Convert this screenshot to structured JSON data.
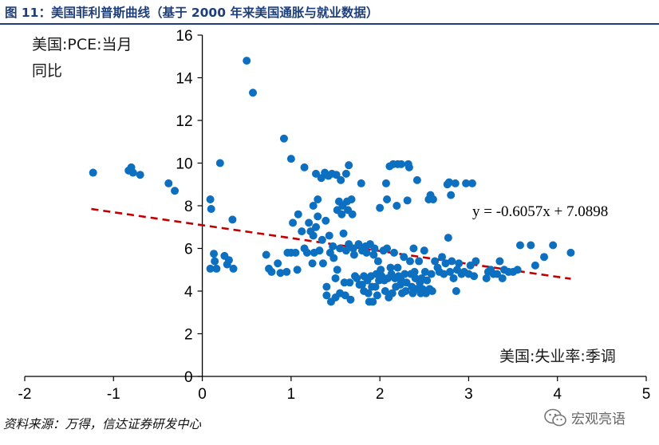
{
  "header": {
    "title": "图 11：美国菲利普斯曲线（基于 2000 年来美国通胀与就业数据）"
  },
  "footer": {
    "source": "资料来源：万得，信达证券研发中心",
    "watermark": "宏观亮语",
    "watermark_icon": "wechat-icon"
  },
  "chart_data": {
    "type": "scatter",
    "title": "",
    "ylabel": "美国:PCE:当月同比",
    "xlabel": "美国:失业率:季调",
    "xlim": [
      -2,
      5
    ],
    "ylim": [
      0,
      16
    ],
    "x_ticks": [
      "-2",
      "-1",
      "0",
      "1",
      "2",
      "3",
      "4",
      "5"
    ],
    "y_ticks": [
      "0",
      "2",
      "4",
      "6",
      "8",
      "10",
      "12",
      "14",
      "16"
    ],
    "grid": false,
    "point_color": "#0c6fbf",
    "trendline": {
      "slope": -0.6057,
      "intercept": 7.0898,
      "x_range": [
        -1.25,
        4.15
      ],
      "color": "#c00000",
      "style": "dashed",
      "equation": "y = -0.6057x + 7.0898"
    },
    "points": [
      [
        -1.23,
        9.55
      ],
      [
        -0.83,
        9.65
      ],
      [
        -0.8,
        9.8
      ],
      [
        -0.78,
        9.55
      ],
      [
        -0.7,
        9.45
      ],
      [
        -0.38,
        9.05
      ],
      [
        -0.31,
        8.7
      ],
      [
        0.09,
        8.3
      ],
      [
        0.1,
        7.85
      ],
      [
        0.09,
        5.05
      ],
      [
        0.13,
        5.75
      ],
      [
        0.14,
        5.4
      ],
      [
        0.16,
        5.05
      ],
      [
        0.2,
        10.0
      ],
      [
        0.25,
        5.65
      ],
      [
        0.28,
        5.25
      ],
      [
        0.3,
        5.45
      ],
      [
        0.35,
        5.05
      ],
      [
        0.34,
        7.35
      ],
      [
        0.5,
        14.8
      ],
      [
        0.57,
        13.3
      ],
      [
        0.72,
        5.7
      ],
      [
        0.75,
        5.05
      ],
      [
        0.78,
        4.9
      ],
      [
        0.85,
        5.3
      ],
      [
        0.88,
        4.85
      ],
      [
        0.92,
        11.15
      ],
      [
        0.95,
        4.9
      ],
      [
        0.96,
        5.8
      ],
      [
        1.0,
        10.2
      ],
      [
        1.0,
        5.8
      ],
      [
        1.02,
        7.2
      ],
      [
        1.05,
        5.8
      ],
      [
        1.07,
        5.0
      ],
      [
        1.08,
        7.6
      ],
      [
        1.12,
        6.8
      ],
      [
        1.15,
        9.8
      ],
      [
        1.15,
        6.0
      ],
      [
        1.18,
        5.8
      ],
      [
        1.2,
        7.2
      ],
      [
        1.22,
        6.8
      ],
      [
        1.24,
        5.3
      ],
      [
        1.25,
        8.0
      ],
      [
        1.25,
        6.6
      ],
      [
        1.26,
        5.8
      ],
      [
        1.28,
        9.5
      ],
      [
        1.28,
        7.0
      ],
      [
        1.3,
        8.3
      ],
      [
        1.3,
        7.5
      ],
      [
        1.32,
        5.9
      ],
      [
        1.34,
        9.3
      ],
      [
        1.35,
        6.4
      ],
      [
        1.36,
        5.3
      ],
      [
        1.38,
        9.55
      ],
      [
        1.39,
        7.3
      ],
      [
        1.4,
        4.2
      ],
      [
        1.4,
        3.8
      ],
      [
        1.42,
        9.4
      ],
      [
        1.43,
        6.6
      ],
      [
        1.44,
        5.8
      ],
      [
        1.45,
        3.5
      ],
      [
        1.46,
        9.5
      ],
      [
        1.47,
        6.1
      ],
      [
        1.48,
        5.55
      ],
      [
        1.5,
        4.6
      ],
      [
        1.5,
        3.7
      ],
      [
        1.51,
        9.45
      ],
      [
        1.52,
        7.8
      ],
      [
        1.52,
        5.0
      ],
      [
        1.54,
        8.2
      ],
      [
        1.55,
        6.0
      ],
      [
        1.55,
        3.9
      ],
      [
        1.56,
        9.2
      ],
      [
        1.57,
        7.6
      ],
      [
        1.58,
        8.0
      ],
      [
        1.59,
        6.7
      ],
      [
        1.6,
        4.4
      ],
      [
        1.61,
        3.8
      ],
      [
        1.62,
        9.5
      ],
      [
        1.62,
        5.9
      ],
      [
        1.63,
        8.2
      ],
      [
        1.64,
        7.8
      ],
      [
        1.65,
        9.9
      ],
      [
        1.65,
        6.2
      ],
      [
        1.66,
        4.4
      ],
      [
        1.67,
        3.6
      ],
      [
        1.68,
        8.3
      ],
      [
        1.69,
        7.6
      ],
      [
        1.7,
        6.0
      ],
      [
        1.71,
        5.7
      ],
      [
        1.72,
        4.7
      ],
      [
        1.74,
        4.6
      ],
      [
        1.76,
        6.2
      ],
      [
        1.77,
        4.3
      ],
      [
        1.79,
        9.05
      ],
      [
        1.8,
        5.9
      ],
      [
        1.8,
        4.3
      ],
      [
        1.82,
        4.7
      ],
      [
        1.82,
        4.0
      ],
      [
        1.84,
        6.1
      ],
      [
        1.85,
        5.8
      ],
      [
        1.86,
        4.5
      ],
      [
        1.87,
        3.9
      ],
      [
        1.88,
        3.5
      ],
      [
        1.89,
        6.2
      ],
      [
        1.9,
        4.7
      ],
      [
        1.91,
        4.2
      ],
      [
        1.92,
        3.5
      ],
      [
        1.93,
        5.7
      ],
      [
        1.94,
        6.0
      ],
      [
        1.95,
        4.2
      ],
      [
        1.96,
        4.8
      ],
      [
        1.97,
        3.8
      ],
      [
        1.98,
        5.4
      ],
      [
        1.99,
        4.5
      ],
      [
        2.0,
        7.9
      ],
      [
        2.01,
        5.0
      ],
      [
        2.02,
        4.7
      ],
      [
        2.04,
        5.9
      ],
      [
        2.05,
        4.5
      ],
      [
        2.06,
        4.0
      ],
      [
        2.07,
        9.05
      ],
      [
        2.08,
        8.3
      ],
      [
        2.08,
        6.0
      ],
      [
        2.09,
        4.6
      ],
      [
        2.1,
        3.7
      ],
      [
        2.11,
        9.85
      ],
      [
        2.12,
        5.1
      ],
      [
        2.13,
        4.8
      ],
      [
        2.14,
        3.9
      ],
      [
        2.15,
        9.95
      ],
      [
        2.16,
        5.8
      ],
      [
        2.17,
        4.6
      ],
      [
        2.18,
        4.2
      ],
      [
        2.19,
        8.0
      ],
      [
        2.2,
        9.95
      ],
      [
        2.2,
        5.1
      ],
      [
        2.21,
        4.7
      ],
      [
        2.23,
        4.3
      ],
      [
        2.24,
        9.95
      ],
      [
        2.24,
        4.5
      ],
      [
        2.25,
        3.9
      ],
      [
        2.27,
        5.6
      ],
      [
        2.28,
        4.8
      ],
      [
        2.29,
        4.0
      ],
      [
        2.3,
        4.4
      ],
      [
        2.31,
        8.25
      ],
      [
        2.32,
        9.95
      ],
      [
        2.33,
        9.8
      ],
      [
        2.34,
        5.4
      ],
      [
        2.35,
        4.8
      ],
      [
        2.36,
        4.2
      ],
      [
        2.37,
        3.9
      ],
      [
        2.38,
        6.0
      ],
      [
        2.39,
        4.9
      ],
      [
        2.4,
        4.6
      ],
      [
        2.41,
        4.1
      ],
      [
        2.42,
        9.2
      ],
      [
        2.44,
        5.4
      ],
      [
        2.45,
        4.4
      ],
      [
        2.46,
        3.9
      ],
      [
        2.47,
        4.6
      ],
      [
        2.48,
        4.1
      ],
      [
        2.5,
        5.9
      ],
      [
        2.51,
        4.9
      ],
      [
        2.52,
        3.9
      ],
      [
        2.53,
        4.5
      ],
      [
        2.55,
        8.3
      ],
      [
        2.56,
        4.1
      ],
      [
        2.57,
        8.5
      ],
      [
        2.58,
        4.8
      ],
      [
        2.59,
        4.0
      ],
      [
        2.6,
        8.3
      ],
      [
        2.62,
        5.4
      ],
      [
        2.65,
        5.1
      ],
      [
        2.67,
        4.9
      ],
      [
        2.7,
        5.6
      ],
      [
        2.72,
        4.8
      ],
      [
        2.74,
        5.3
      ],
      [
        2.76,
        9.0
      ],
      [
        2.77,
        6.5
      ],
      [
        2.78,
        9.1
      ],
      [
        2.79,
        4.9
      ],
      [
        2.8,
        8.5
      ],
      [
        2.81,
        5.4
      ],
      [
        2.83,
        4.6
      ],
      [
        2.85,
        9.05
      ],
      [
        2.86,
        4.0
      ],
      [
        2.87,
        5.0
      ],
      [
        2.89,
        5.3
      ],
      [
        2.92,
        4.8
      ],
      [
        2.95,
        4.9
      ],
      [
        2.97,
        9.05
      ],
      [
        3.0,
        4.8
      ],
      [
        3.02,
        5.2
      ],
      [
        3.04,
        9.05
      ],
      [
        3.06,
        4.7
      ],
      [
        3.08,
        5.4
      ],
      [
        3.2,
        4.6
      ],
      [
        3.22,
        4.9
      ],
      [
        3.25,
        5.0
      ],
      [
        3.28,
        4.8
      ],
      [
        3.32,
        4.8
      ],
      [
        3.35,
        5.4
      ],
      [
        3.38,
        4.6
      ],
      [
        3.4,
        5.0
      ],
      [
        3.45,
        4.9
      ],
      [
        3.5,
        4.9
      ],
      [
        3.55,
        5.0
      ],
      [
        3.58,
        6.15
      ],
      [
        3.7,
        6.15
      ],
      [
        3.75,
        5.2
      ],
      [
        3.85,
        5.6
      ],
      [
        3.95,
        6.15
      ],
      [
        4.15,
        5.8
      ]
    ]
  }
}
